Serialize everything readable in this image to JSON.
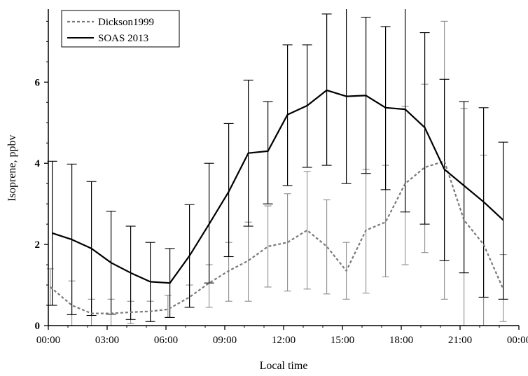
{
  "chart_data": {
    "type": "line",
    "title": "",
    "xlabel": "Local time",
    "ylabel": "Isoprene, ppbv",
    "xlim": [
      0,
      24
    ],
    "ylim": [
      0,
      7.8
    ],
    "x_ticks": [
      {
        "value": 0,
        "label": "00:00"
      },
      {
        "value": 3,
        "label": "03:00"
      },
      {
        "value": 6,
        "label": "06:00"
      },
      {
        "value": 9,
        "label": "09:00"
      },
      {
        "value": 12,
        "label": "12:00"
      },
      {
        "value": 15,
        "label": "15:00"
      },
      {
        "value": 18,
        "label": "18:00"
      },
      {
        "value": 21,
        "label": "21:00"
      },
      {
        "value": 24,
        "label": "00:00"
      }
    ],
    "y_ticks": [
      {
        "value": 0,
        "label": "0"
      },
      {
        "value": 2,
        "label": "2"
      },
      {
        "value": 4,
        "label": "4"
      },
      {
        "value": 6,
        "label": "6"
      }
    ],
    "legend_position": "top-left",
    "grid": false,
    "series": [
      {
        "name": "Dickson1999",
        "style": "dashed",
        "color": "#7a7a7a",
        "errorbar_color": "#8c8c8c",
        "x": [
          0.1,
          1.2,
          2.2,
          3.2,
          4.2,
          5.2,
          6.1,
          7.2,
          8.2,
          9.2,
          10.2,
          11.2,
          12.2,
          13.2,
          14.2,
          15.2,
          16.2,
          17.2,
          18.2,
          19.2,
          20.2,
          21.2,
          22.2,
          23.2
        ],
        "y": [
          0.95,
          0.5,
          0.3,
          0.3,
          0.33,
          0.35,
          0.4,
          0.7,
          1.05,
          1.35,
          1.6,
          1.95,
          2.05,
          2.35,
          1.95,
          1.35,
          2.35,
          2.55,
          3.5,
          3.9,
          4.05,
          2.6,
          2.0,
          0.9
        ],
        "err_low": [
          0.5,
          0.0,
          0.0,
          0.0,
          0.05,
          0.1,
          0.2,
          0.45,
          0.45,
          0.6,
          0.6,
          0.95,
          0.85,
          0.9,
          0.78,
          0.65,
          0.8,
          1.2,
          1.5,
          1.8,
          0.65,
          0.0,
          0.0,
          0.1
        ],
        "err_high": [
          1.4,
          1.1,
          0.65,
          0.65,
          0.6,
          0.6,
          0.75,
          1.0,
          1.5,
          2.05,
          2.55,
          2.95,
          3.25,
          3.8,
          3.1,
          2.05,
          3.85,
          3.95,
          5.4,
          5.95,
          7.5,
          5.35,
          4.2,
          1.75
        ]
      },
      {
        "name": "SOAS 2013",
        "style": "solid",
        "color": "#000000",
        "errorbar_color": "#000000",
        "x": [
          0.2,
          1.2,
          2.2,
          3.2,
          4.2,
          5.2,
          6.2,
          7.2,
          8.2,
          9.2,
          10.2,
          11.2,
          12.2,
          13.2,
          14.2,
          15.2,
          16.2,
          17.2,
          18.2,
          19.2,
          20.2,
          21.2,
          22.2,
          23.2
        ],
        "y": [
          2.28,
          2.12,
          1.9,
          1.55,
          1.3,
          1.08,
          1.05,
          1.72,
          2.5,
          3.3,
          4.25,
          4.3,
          5.2,
          5.42,
          5.8,
          5.65,
          5.67,
          5.37,
          5.33,
          4.88,
          3.85,
          3.45,
          3.05,
          2.6
        ],
        "err_low": [
          0.5,
          0.27,
          0.25,
          0.28,
          0.15,
          0.1,
          0.2,
          0.45,
          1.05,
          1.7,
          2.45,
          3.0,
          3.45,
          3.9,
          3.95,
          3.5,
          3.75,
          3.35,
          2.8,
          2.5,
          1.6,
          1.3,
          0.7,
          0.65
        ],
        "err_high": [
          4.05,
          3.98,
          3.55,
          2.82,
          2.45,
          2.05,
          1.9,
          2.98,
          4.0,
          4.98,
          6.05,
          5.52,
          6.92,
          6.92,
          7.68,
          7.82,
          7.6,
          7.37,
          7.9,
          7.22,
          6.07,
          5.52,
          5.37,
          4.52
        ]
      }
    ]
  }
}
